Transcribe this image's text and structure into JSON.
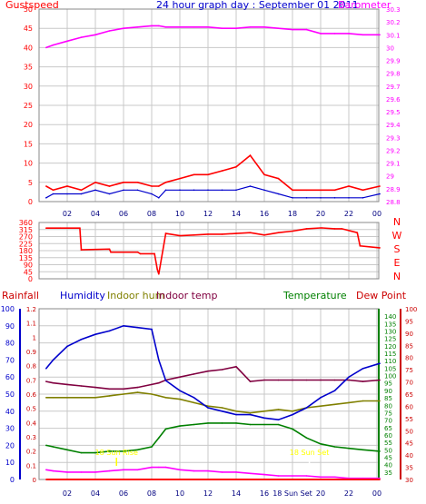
{
  "header": {
    "gust_label": "Gustspeed",
    "title": "24 hour graph day : September 01 2011",
    "baro_label": "Barometer",
    "dir_letters": [
      "N",
      "W",
      "S",
      "E",
      "N"
    ],
    "sun_rise": "18 Sun Rise",
    "sun_set": "18 Sun Set",
    "rain_label": "Rainfall",
    "hum_label": "Humidity",
    "inhum_label": "Indoor hum",
    "intemp_label": "Indoor temp",
    "temp_label": "Temperature",
    "dew_label": "Dew Point"
  },
  "colors": {
    "gust": "#ff0000",
    "wind": "#0000cc",
    "baro": "#ff00ff",
    "dir": "#ff0000",
    "humidity": "#0000cc",
    "indoor_hum": "#808000",
    "indoor_temp": "#800040",
    "temperature": "#008000",
    "dewpoint": "#cc0000",
    "rain": "#ff00ff",
    "sun": "#ffff00"
  },
  "chart_data": [
    {
      "type": "line",
      "title": "24 hour graph day : September 01 2011",
      "x_ticks": [
        "02",
        "04",
        "06",
        "08",
        "10",
        "12",
        "14",
        "16",
        "18",
        "20",
        "22",
        "00"
      ],
      "x_hours": [
        0.5,
        1,
        2,
        3,
        4,
        5,
        6,
        7,
        8,
        8.5,
        9,
        10,
        11,
        12,
        13,
        14,
        15,
        16,
        17,
        18,
        19,
        20,
        21,
        22,
        23,
        24.2
      ],
      "left_axis": {
        "label": "Gustspeed",
        "ylim": [
          0,
          50
        ],
        "ticks": [
          0,
          5,
          10,
          15,
          20,
          25,
          30,
          35,
          40,
          45,
          50
        ]
      },
      "right_axis": {
        "label": "Barometer",
        "ylim": [
          28.8,
          30.3
        ],
        "ticks": [
          "28.8",
          "28.9",
          "29",
          "29.1",
          "29.2",
          "29.3",
          "29.4",
          "29.5",
          "29.6",
          "29.7",
          "29.8",
          "29.9",
          "30",
          "30.1",
          "30.2",
          "30.3"
        ]
      },
      "series": [
        {
          "name": "Gustspeed",
          "axis": "left",
          "values": [
            4,
            3,
            4,
            3,
            5,
            4,
            5,
            5,
            4,
            4,
            5,
            6,
            7,
            7,
            8,
            9,
            12,
            7,
            6,
            3,
            3,
            3,
            3,
            4,
            3,
            4
          ]
        },
        {
          "name": "Barometer",
          "axis": "right",
          "values": [
            30.0,
            30.02,
            30.05,
            30.08,
            30.1,
            30.13,
            30.15,
            30.16,
            30.17,
            30.17,
            30.16,
            30.16,
            30.16,
            30.16,
            30.15,
            30.15,
            30.16,
            30.16,
            30.15,
            30.14,
            30.14,
            30.11,
            30.11,
            30.11,
            30.1,
            30.1
          ]
        },
        {
          "name": "Wind",
          "axis": "left",
          "values": [
            1,
            2,
            2,
            2,
            3,
            2,
            3,
            3,
            2,
            1,
            3,
            3,
            3,
            3,
            3,
            3,
            4,
            3,
            2,
            1,
            1,
            1,
            1,
            1,
            1,
            2
          ]
        }
      ]
    },
    {
      "type": "line",
      "x_ticks": [
        "02",
        "04",
        "06",
        "08",
        "10",
        "12",
        "14",
        "16",
        "18",
        "20",
        "22",
        "00"
      ],
      "x_hours": [
        0.5,
        1.5,
        2.9,
        3,
        5,
        5.1,
        7,
        7.2,
        8.2,
        8.4,
        8.5,
        9,
        10,
        11,
        12,
        13,
        14,
        15,
        16,
        17,
        18,
        19,
        20,
        20.1,
        21,
        21.5,
        22.6,
        22.8,
        24.2
      ],
      "y_axis": {
        "ylim": [
          0,
          360
        ],
        "ticks": [
          0,
          45,
          90,
          135,
          180,
          225,
          270,
          315,
          360
        ]
      },
      "direction_letters": [
        "N",
        "W",
        "S",
        "E",
        "N"
      ],
      "series": [
        {
          "name": "Wind Direction",
          "values": [
            324,
            324,
            324,
            185,
            190,
            170,
            170,
            160,
            160,
            60,
            30,
            290,
            275,
            280,
            285,
            285,
            290,
            295,
            280,
            295,
            305,
            320,
            325,
            325,
            320,
            320,
            295,
            210,
            198
          ]
        }
      ]
    },
    {
      "type": "line",
      "x_ticks": [
        "02",
        "04",
        "06",
        "08",
        "10",
        "12",
        "14",
        "16",
        "18 Sun Set",
        "20",
        "22",
        "00"
      ],
      "legend": [
        "Rainfall",
        "Humidity",
        "Indoor hum",
        "Indoor temp",
        "Temperature",
        "Dew Point"
      ],
      "x_hours": [
        0.5,
        1,
        2,
        3,
        4,
        5,
        6,
        7,
        8,
        8.5,
        9,
        10,
        11,
        12,
        13,
        14,
        15,
        16,
        17,
        18,
        19,
        20,
        21,
        22,
        23,
        24.2
      ],
      "axes": {
        "humidity": {
          "ylim": [
            0,
            100
          ],
          "ticks": [
            0,
            10,
            20,
            30,
            40,
            50,
            60,
            70,
            80,
            90,
            100
          ]
        },
        "rain": {
          "ylim": [
            0,
            1.2
          ],
          "ticks": [
            "0",
            "0.1",
            "0.2",
            "0.3",
            "0.4",
            "0.5",
            "0.6",
            "0.7",
            "0.8",
            "0.9",
            "1",
            "1.1",
            "1.2"
          ]
        },
        "temperature": {
          "ylim": [
            30,
            145
          ],
          "ticks": [
            35,
            40,
            45,
            50,
            55,
            60,
            65,
            70,
            75,
            80,
            85,
            90,
            95,
            100,
            105,
            110,
            115,
            120,
            125,
            130,
            135,
            140
          ]
        },
        "dewpoint": {
          "ylim": [
            30,
            100
          ],
          "ticks": [
            30,
            35,
            40,
            45,
            50,
            55,
            60,
            65,
            70,
            75,
            80,
            85,
            90,
            95,
            100
          ]
        }
      },
      "series": [
        {
          "name": "Humidity",
          "axis": "humidity",
          "values": [
            65,
            70,
            78,
            82,
            85,
            87,
            90,
            89,
            88,
            70,
            58,
            52,
            48,
            42,
            40,
            38,
            38,
            36,
            35,
            38,
            42,
            48,
            52,
            60,
            65,
            68
          ]
        },
        {
          "name": "Indoor hum",
          "axis": "humidity",
          "values": [
            48,
            48,
            48,
            48,
            48,
            49,
            50,
            51,
            50,
            49,
            48,
            47,
            45,
            43,
            42,
            40,
            39,
            40,
            41,
            40,
            42,
            43,
            44,
            45,
            46,
            46
          ]
        },
        {
          "name": "Indoor temp",
          "axis": "temperature",
          "values": [
            96,
            95,
            94,
            93,
            92,
            91,
            91,
            92,
            94,
            95,
            97,
            99,
            101,
            103,
            104,
            106,
            96,
            97,
            97,
            97,
            97,
            97,
            97,
            97,
            96,
            97
          ]
        },
        {
          "name": "Temperature",
          "axis": "temperature",
          "values": [
            53,
            52,
            50,
            48,
            48,
            49,
            49,
            50,
            52,
            58,
            64,
            66,
            67,
            68,
            68,
            68,
            67,
            67,
            67,
            64,
            58,
            54,
            52,
            51,
            50,
            49
          ]
        },
        {
          "name": "Dew Point",
          "axis": "dewpoint",
          "values": [
            34,
            33.5,
            33,
            33,
            33,
            33.5,
            34,
            34,
            35,
            35,
            35,
            34,
            33.5,
            33.5,
            33,
            33,
            32.5,
            32,
            31.5,
            31.5,
            31.5,
            31,
            31,
            30.5,
            30.5,
            30.5
          ]
        },
        {
          "name": "Rainfall",
          "axis": "rain",
          "values": [
            0,
            0,
            0,
            0,
            0,
            0,
            0,
            0,
            0,
            0,
            0,
            0,
            0,
            0,
            0,
            0,
            0,
            0,
            0,
            0,
            0,
            0,
            0,
            0,
            0,
            0
          ]
        }
      ],
      "sun_labels": [
        "18 Sun Rise",
        "18 Sun Set"
      ]
    }
  ]
}
